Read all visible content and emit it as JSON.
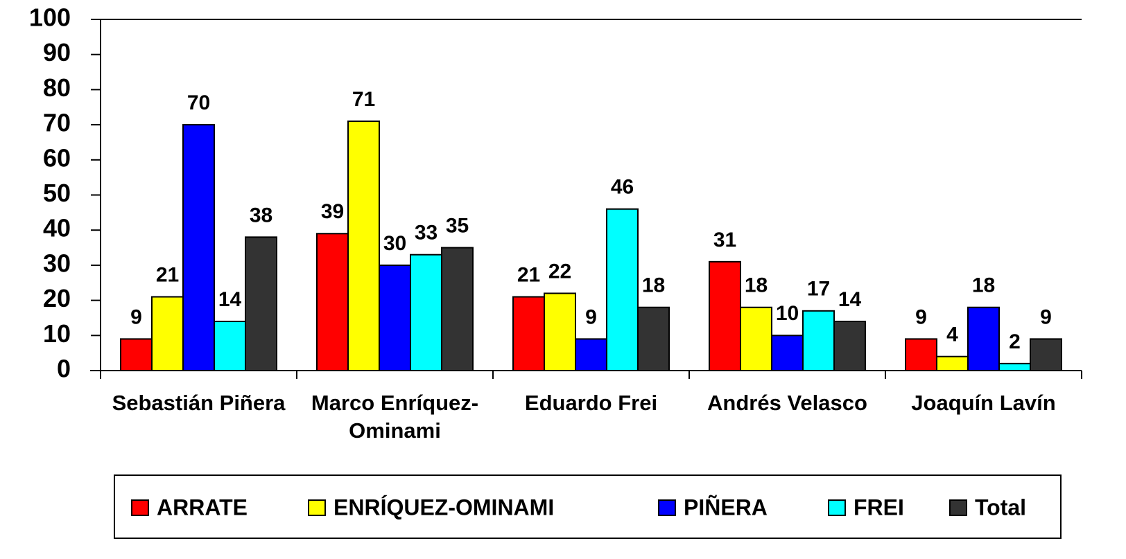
{
  "chart_data": {
    "type": "bar",
    "categories": [
      "Sebastián Piñera",
      "Marco Enríquez-Ominami",
      "Eduardo Frei",
      "Andrés Velasco",
      "Joaquín Lavín"
    ],
    "series": [
      {
        "name": "ARRATE",
        "color": "#ff0000",
        "values": [
          9,
          39,
          21,
          31,
          9
        ]
      },
      {
        "name": "ENRÍQUEZ-OMINAMI",
        "color": "#ffff00",
        "values": [
          21,
          71,
          22,
          18,
          4
        ]
      },
      {
        "name": "PIÑERA",
        "color": "#0000ff",
        "values": [
          70,
          30,
          9,
          10,
          18
        ]
      },
      {
        "name": "FREI",
        "color": "#00ffff",
        "values": [
          14,
          33,
          46,
          17,
          2
        ]
      },
      {
        "name": "Total",
        "color": "#333333",
        "values": [
          38,
          35,
          18,
          14,
          9
        ]
      }
    ],
    "ylim": [
      0,
      100
    ],
    "yticks": [
      0,
      10,
      20,
      30,
      40,
      50,
      60,
      70,
      80,
      90,
      100
    ],
    "grid": false,
    "legend": "bottom"
  }
}
